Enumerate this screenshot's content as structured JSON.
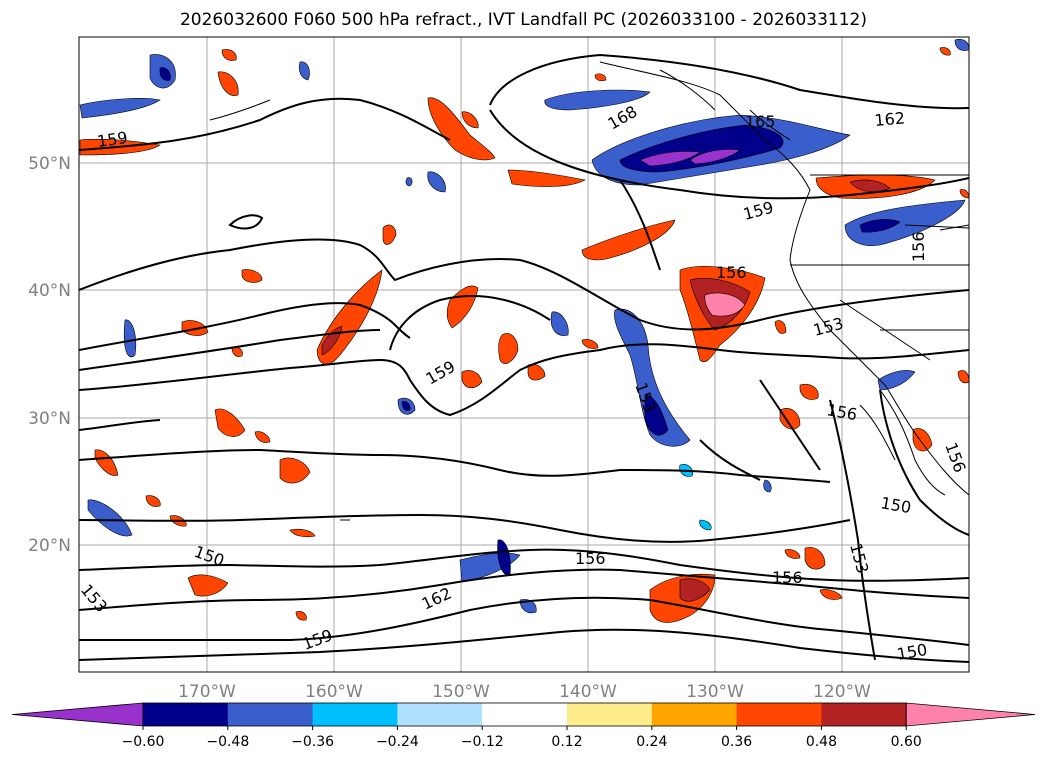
{
  "title": "2026032600 F060 500 hPa refract., IVT Landfall PC (2026033100 - 2026033112)",
  "map": {
    "lat_ticks": [
      "50°N",
      "40°N",
      "30°N",
      "20°N"
    ],
    "lon_ticks": [
      "170°W",
      "160°W",
      "150°W",
      "140°W",
      "130°W",
      "120°W"
    ],
    "axis_label_color": "#808080",
    "contour_labels": [
      "159",
      "168",
      "165",
      "162",
      "159",
      "156",
      "156",
      "159",
      "153",
      "156",
      "153",
      "150",
      "150",
      "153",
      "156",
      "156",
      "162",
      "159",
      "150",
      "153",
      "156"
    ]
  },
  "colorbar": {
    "colors": [
      "#9932cc",
      "#00008b",
      "#3a5fcd",
      "#00bfff",
      "#b0e2ff",
      "#ffffff",
      "#ffec8b",
      "#ffa500",
      "#ff4500",
      "#b22222",
      "#ff82ab"
    ],
    "tick_labels": [
      "−0.60",
      "−0.48",
      "−0.36",
      "−0.24",
      "−0.12",
      "0.12",
      "0.24",
      "0.36",
      "0.48",
      "0.60"
    ]
  }
}
